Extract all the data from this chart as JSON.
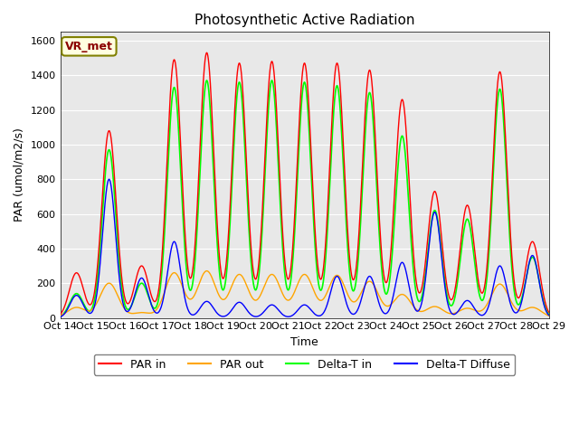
{
  "title": "Photosynthetic Active Radiation",
  "ylabel": "PAR (umol/m2/s)",
  "xlabel": "Time",
  "annotation": "VR_met",
  "background_color": "#e8e8e8",
  "ylim": [
    0,
    1650
  ],
  "legend_entries": [
    "PAR in",
    "PAR out",
    "Delta-T in",
    "Delta-T Diffuse"
  ],
  "legend_colors": [
    "red",
    "orange",
    "lime",
    "blue"
  ],
  "x_tick_labels": [
    "Oct 14",
    "Oct 15",
    "Oct 16",
    "Oct 17",
    "Oct 18",
    "Oct 19",
    "Oct 20",
    "Oct 21",
    "Oct 22",
    "Oct 23",
    "Oct 24",
    "Oct 25",
    "Oct 26",
    "Oct 27",
    "Oct 28",
    "Oct 29"
  ],
  "n_days": 15,
  "seed": 42,
  "par_in_peaks": [
    260,
    1080,
    300,
    1490,
    1530,
    1470,
    1480,
    1470,
    1470,
    1430,
    1260,
    730,
    650,
    1420,
    440
  ],
  "par_out_peaks": [
    60,
    200,
    30,
    260,
    270,
    250,
    250,
    250,
    245,
    210,
    135,
    65,
    55,
    195,
    60
  ],
  "delta_t_peaks": [
    140,
    970,
    200,
    1330,
    1370,
    1360,
    1370,
    1360,
    1340,
    1300,
    1050,
    620,
    570,
    1320,
    350
  ],
  "delta_t_diff_peaks": [
    130,
    800,
    230,
    440,
    95,
    90,
    75,
    75,
    240,
    240,
    320,
    610,
    100,
    300,
    360
  ]
}
